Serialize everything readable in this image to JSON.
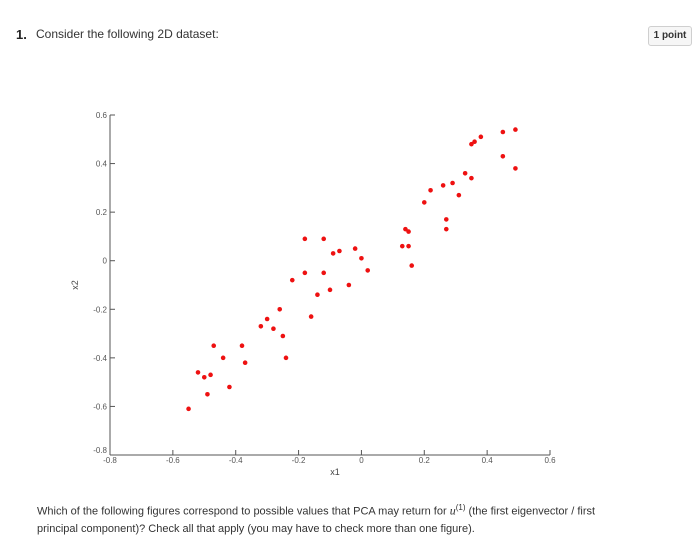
{
  "question": {
    "number": "1.",
    "text": "Consider the following 2D dataset:",
    "points_badge": "1 point",
    "instruction_before": "Which of the following figures correspond to possible values that PCA may return for ",
    "instruction_var": "u",
    "instruction_sup": "(1)",
    "instruction_after": " (the first eigenvector / first principal component)? Check all that apply (you may have to check more than one figure)."
  },
  "chart_data": {
    "type": "scatter",
    "title": "",
    "xlabel": "x1",
    "ylabel": "x2",
    "xlim": [
      -0.8,
      0.6
    ],
    "ylim": [
      -0.8,
      0.6
    ],
    "x_ticks": [
      "-0.8",
      "-0.6",
      "-0.4",
      "-0.2",
      "0",
      "0.2",
      "0.4",
      "0.6"
    ],
    "y_ticks": [
      "-0.8",
      "-0.6",
      "-0.4",
      "-0.2",
      "0",
      "0.2",
      "0.4",
      "0.6"
    ],
    "grid": false,
    "color": "#ee1111",
    "points": [
      [
        -0.55,
        -0.61
      ],
      [
        -0.52,
        -0.46
      ],
      [
        -0.5,
        -0.48
      ],
      [
        -0.49,
        -0.55
      ],
      [
        -0.48,
        -0.47
      ],
      [
        -0.47,
        -0.35
      ],
      [
        -0.44,
        -0.4
      ],
      [
        -0.42,
        -0.52
      ],
      [
        -0.38,
        -0.35
      ],
      [
        -0.37,
        -0.42
      ],
      [
        -0.32,
        -0.27
      ],
      [
        -0.3,
        -0.24
      ],
      [
        -0.28,
        -0.28
      ],
      [
        -0.26,
        -0.2
      ],
      [
        -0.25,
        -0.31
      ],
      [
        -0.24,
        -0.4
      ],
      [
        -0.22,
        -0.08
      ],
      [
        -0.18,
        -0.05
      ],
      [
        -0.18,
        0.09
      ],
      [
        -0.16,
        -0.23
      ],
      [
        -0.14,
        -0.14
      ],
      [
        -0.12,
        0.09
      ],
      [
        -0.12,
        -0.05
      ],
      [
        -0.1,
        -0.12
      ],
      [
        -0.09,
        0.03
      ],
      [
        -0.07,
        0.04
      ],
      [
        -0.04,
        -0.1
      ],
      [
        -0.02,
        0.05
      ],
      [
        0.0,
        0.01
      ],
      [
        0.02,
        -0.04
      ],
      [
        0.13,
        0.06
      ],
      [
        0.14,
        0.13
      ],
      [
        0.15,
        0.12
      ],
      [
        0.15,
        0.06
      ],
      [
        0.16,
        -0.02
      ],
      [
        0.2,
        0.24
      ],
      [
        0.22,
        0.29
      ],
      [
        0.26,
        0.31
      ],
      [
        0.27,
        0.17
      ],
      [
        0.27,
        0.13
      ],
      [
        0.29,
        0.32
      ],
      [
        0.31,
        0.27
      ],
      [
        0.33,
        0.36
      ],
      [
        0.35,
        0.34
      ],
      [
        0.35,
        0.48
      ],
      [
        0.36,
        0.49
      ],
      [
        0.38,
        0.51
      ],
      [
        0.45,
        0.53
      ],
      [
        0.45,
        0.43
      ],
      [
        0.49,
        0.54
      ],
      [
        0.49,
        0.38
      ]
    ]
  }
}
